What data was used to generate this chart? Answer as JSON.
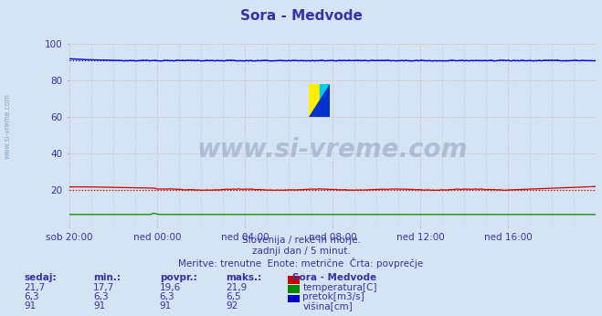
{
  "title": "Sora - Medvode",
  "background_color": "#d4e4f4",
  "plot_bg_color": "#d4e4f4",
  "xlim": [
    0,
    288
  ],
  "ylim": [
    0,
    100
  ],
  "yticks": [
    20,
    40,
    60,
    80,
    100
  ],
  "xtick_labels": [
    "sob 20:00",
    "ned 00:00",
    "ned 04:00",
    "ned 08:00",
    "ned 12:00",
    "ned 16:00"
  ],
  "xtick_positions": [
    0,
    48,
    96,
    144,
    192,
    240
  ],
  "grid_color_h": "#e8a0a0",
  "grid_color_v": "#e8a0a0",
  "temperatura_color": "#cc0000",
  "pretok_color": "#008800",
  "visina_color": "#0000cc",
  "temp_avg": 19.6,
  "visina_avg": 91.0,
  "watermark": "www.si-vreme.com",
  "subtitle1": "Slovenija / reke in morje.",
  "subtitle2": "zadnji dan / 5 minut.",
  "subtitle3": "Meritve: trenutne  Enote: metrične  Črta: povprečje",
  "legend_title": "Sora - Medvode",
  "legend_items": [
    {
      "label": "temperatura[C]",
      "color": "#cc0000"
    },
    {
      "label": "pretok[m3/s]",
      "color": "#008800"
    },
    {
      "label": "višina[cm]",
      "color": "#0000cc"
    }
  ],
  "table_headers": [
    "sedaj:",
    "min.:",
    "povpr.:",
    "maks.:"
  ],
  "table_data": [
    [
      "21,7",
      "17,7",
      "19,6",
      "21,9"
    ],
    [
      "6,3",
      "6,3",
      "6,3",
      "6,5"
    ],
    [
      "91",
      "91",
      "91",
      "92"
    ]
  ],
  "logo_colors": [
    "#ffee00",
    "#00ccee",
    "#0033cc"
  ]
}
